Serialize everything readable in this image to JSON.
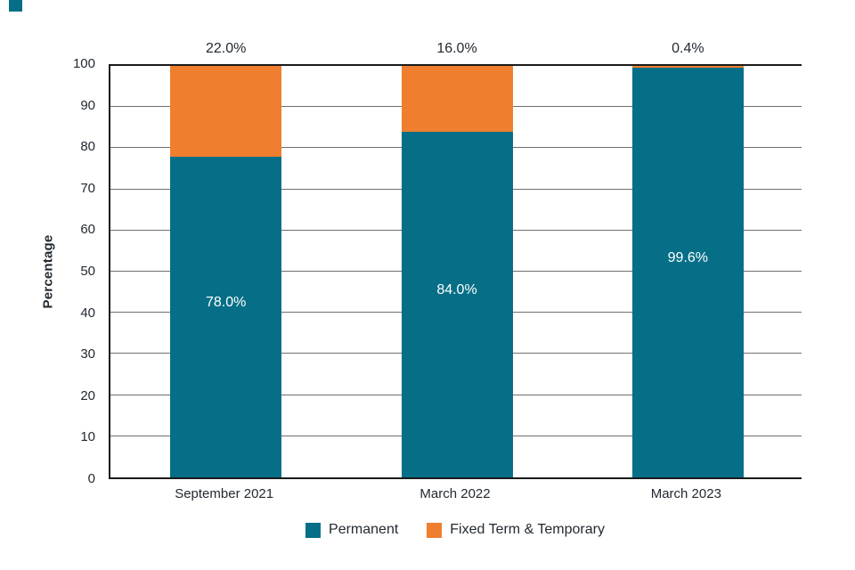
{
  "corner_mark": {
    "color": "#066F87"
  },
  "chart_data": {
    "type": "bar",
    "stacked": true,
    "categories": [
      "September 2021",
      "March 2022",
      "March 2023"
    ],
    "series": [
      {
        "name": "Permanent",
        "color": "#066F87",
        "values": [
          78.0,
          84.0,
          99.6
        ],
        "value_labels": [
          "78.0%",
          "84.0%",
          "99.6%"
        ],
        "label_placement": "inside-bar-white"
      },
      {
        "name": "Fixed Term & Temporary",
        "color": "#EF7F2F",
        "values": [
          22.0,
          16.0,
          0.4
        ],
        "value_labels": [
          "22.0%",
          "16.0%",
          "0.4%"
        ],
        "label_placement": "above-bar"
      }
    ],
    "ylabel": "Percentage",
    "xlabel": "",
    "ylim": [
      0,
      100
    ],
    "yticks": [
      0,
      10,
      20,
      30,
      40,
      50,
      60,
      70,
      80,
      90,
      100
    ],
    "grid": "horizontal",
    "legend_position": "bottom-center",
    "colors": {
      "grid_line": "#6F6F6F",
      "axis_line": "#1A1A1A",
      "text": "#232A31",
      "bar_label_inside": "#FFFFFF"
    }
  }
}
